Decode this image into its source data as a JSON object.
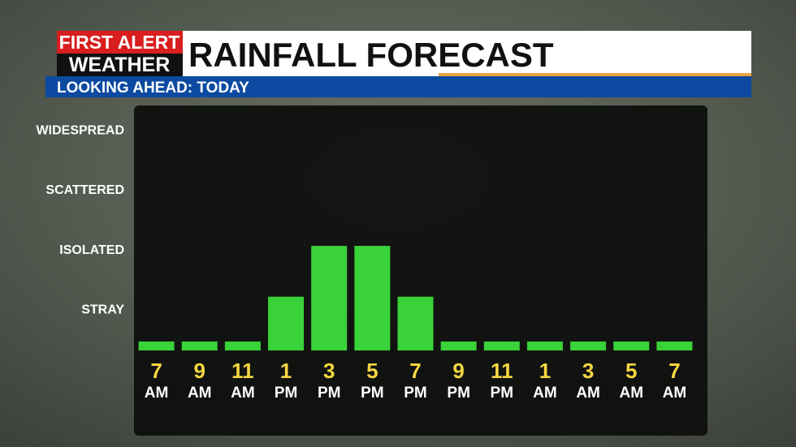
{
  "chart_data": {
    "type": "bar",
    "logo_top": "FIRST ALERT",
    "logo_bottom": "WEATHER",
    "title": "RAINFALL FORECAST",
    "subtitle": "LOOKING AHEAD: TODAY",
    "categories": [
      "7",
      "9",
      "11",
      "1",
      "3",
      "5",
      "7",
      "9",
      "11",
      "1",
      "3",
      "5",
      "7"
    ],
    "periods": [
      "AM",
      "AM",
      "AM",
      "PM",
      "PM",
      "PM",
      "PM",
      "PM",
      "PM",
      "AM",
      "AM",
      "AM",
      "AM"
    ],
    "values": [
      0.45,
      0.45,
      0.45,
      1.2,
      2.05,
      2.05,
      1.2,
      0.45,
      0.45,
      0.45,
      0.45,
      0.45,
      0.45
    ],
    "color": "#39d239",
    "ylim": [
      0.3,
      4.4
    ],
    "yticks": [
      {
        "value": 1,
        "label": "STRAY"
      },
      {
        "value": 2,
        "label": "ISOLATED"
      },
      {
        "value": 3,
        "label": "SCATTERED"
      },
      {
        "value": 4,
        "label": "WIDESPREAD"
      }
    ]
  }
}
